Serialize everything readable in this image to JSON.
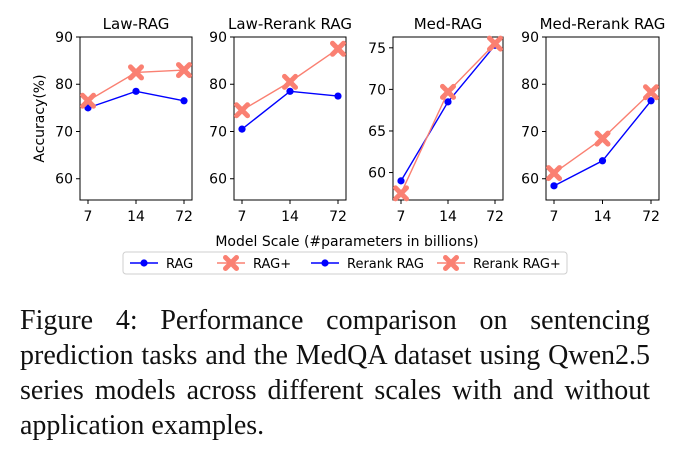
{
  "chart_data": [
    {
      "type": "line",
      "title": "Law-RAG",
      "categories": [
        "7",
        "14",
        "72"
      ],
      "ylabel": "Accuracy(%)",
      "ylim": [
        55.5,
        90
      ],
      "yticks": [
        60,
        70,
        80,
        90
      ],
      "series": [
        {
          "name": "RAG",
          "values": [
            75.0,
            78.5,
            76.5
          ]
        },
        {
          "name": "RAG+",
          "values": [
            76.5,
            82.5,
            83.0
          ]
        }
      ]
    },
    {
      "type": "line",
      "title": "Law-Rerank RAG",
      "categories": [
        "7",
        "14",
        "72"
      ],
      "ylim": [
        55.5,
        90
      ],
      "yticks": [
        60,
        70,
        80,
        90
      ],
      "series": [
        {
          "name": "Rerank RAG",
          "values": [
            70.5,
            78.5,
            77.5
          ]
        },
        {
          "name": "Rerank RAG+",
          "values": [
            74.5,
            80.5,
            87.5
          ]
        }
      ]
    },
    {
      "type": "line",
      "title": "Med-RAG",
      "categories": [
        "7",
        "14",
        "72"
      ],
      "ylim": [
        56.7,
        76.3
      ],
      "yticks": [
        60,
        65,
        70,
        75
      ],
      "series": [
        {
          "name": "RAG",
          "values": [
            59.0,
            68.5,
            75.3
          ]
        },
        {
          "name": "RAG+",
          "values": [
            57.5,
            69.7,
            75.5
          ]
        }
      ]
    },
    {
      "type": "line",
      "title": "Med-Rerank RAG",
      "categories": [
        "7",
        "14",
        "72"
      ],
      "ylim": [
        55.5,
        90
      ],
      "yticks": [
        60,
        70,
        80,
        90
      ],
      "series": [
        {
          "name": "Rerank RAG",
          "values": [
            58.5,
            63.8,
            76.5
          ]
        },
        {
          "name": "Rerank RAG+",
          "values": [
            61.2,
            68.5,
            78.3
          ]
        }
      ]
    }
  ],
  "xlabel": "Model Scale (#parameters in billions)",
  "legend": [
    {
      "label": "RAG",
      "color": "#0000ff",
      "marker": "circle"
    },
    {
      "label": "RAG+",
      "color": "#fa8072",
      "marker": "x"
    },
    {
      "label": "Rerank RAG",
      "color": "#0000ff",
      "marker": "circle"
    },
    {
      "label": "Rerank RAG+",
      "color": "#fa8072",
      "marker": "x"
    }
  ],
  "colors": {
    "base": "#0000ff",
    "plus": "#fa8072"
  },
  "caption": "Figure 4: Performance comparison on sentencing prediction tasks and the MedQA dataset using Qwen2.5 series models across different scales with and without application examples."
}
